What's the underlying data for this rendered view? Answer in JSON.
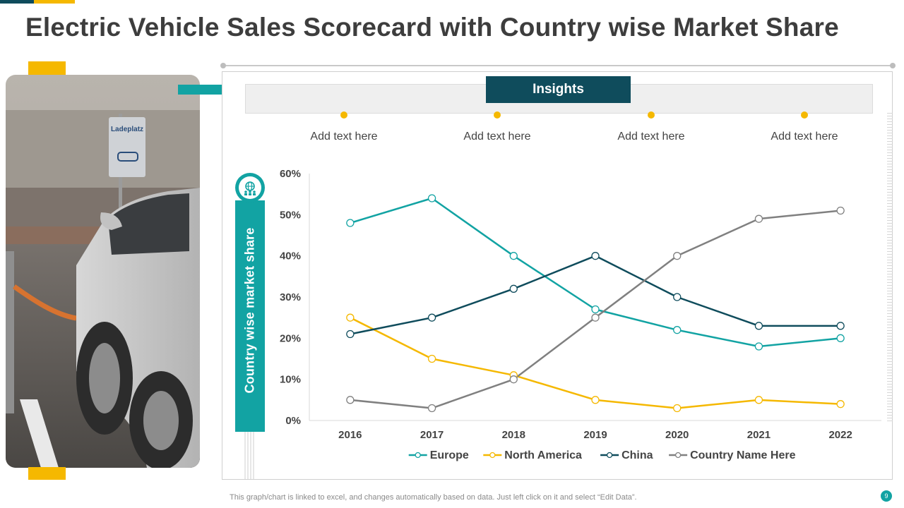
{
  "page": {
    "title": "Electric Vehicle Sales Scorecard with Country wise Market Share",
    "footer_note": "This graph/chart is linked to excel,  and changes automatically based on data. Just left click on it and select “Edit Data”.",
    "page_number": "9"
  },
  "photo": {
    "sign_text": "Ladeplatz",
    "icon": "ev-charging-parking-photo"
  },
  "insights": {
    "heading": "Insights",
    "items": [
      {
        "text": "Add text here"
      },
      {
        "text": "Add text here"
      },
      {
        "text": "Add text here"
      },
      {
        "text": "Add text here"
      }
    ]
  },
  "side_label": {
    "text": "Country wise market share",
    "icon": "globe-people-icon"
  },
  "colors": {
    "accent_yellow": "#f5b800",
    "dark_teal": "#0f4c5c",
    "teal": "#12a3a3",
    "gray": "#808080",
    "title_text": "#3d3d3d"
  },
  "chart_data": {
    "type": "line",
    "title": "",
    "xlabel": "",
    "ylabel": "Country wise market share",
    "categories": [
      "2016",
      "2017",
      "2018",
      "2019",
      "2020",
      "2021",
      "2022"
    ],
    "yticks": [
      "0%",
      "10%",
      "20%",
      "30%",
      "40%",
      "50%",
      "60%"
    ],
    "ylim": [
      0,
      60
    ],
    "grid": false,
    "legend_position": "bottom",
    "series": [
      {
        "name": "Europe",
        "color": "#12a3a3",
        "values": [
          48,
          54,
          40,
          27,
          22,
          18,
          20
        ]
      },
      {
        "name": "North America",
        "color": "#f5b800",
        "values": [
          25,
          15,
          11,
          5,
          3,
          5,
          4
        ]
      },
      {
        "name": "China",
        "color": "#0f4c5c",
        "values": [
          21,
          25,
          32,
          40,
          30,
          23,
          23
        ]
      },
      {
        "name": "Country Name Here",
        "color": "#808080",
        "values": [
          5,
          3,
          10,
          25,
          40,
          49,
          51
        ]
      }
    ]
  }
}
